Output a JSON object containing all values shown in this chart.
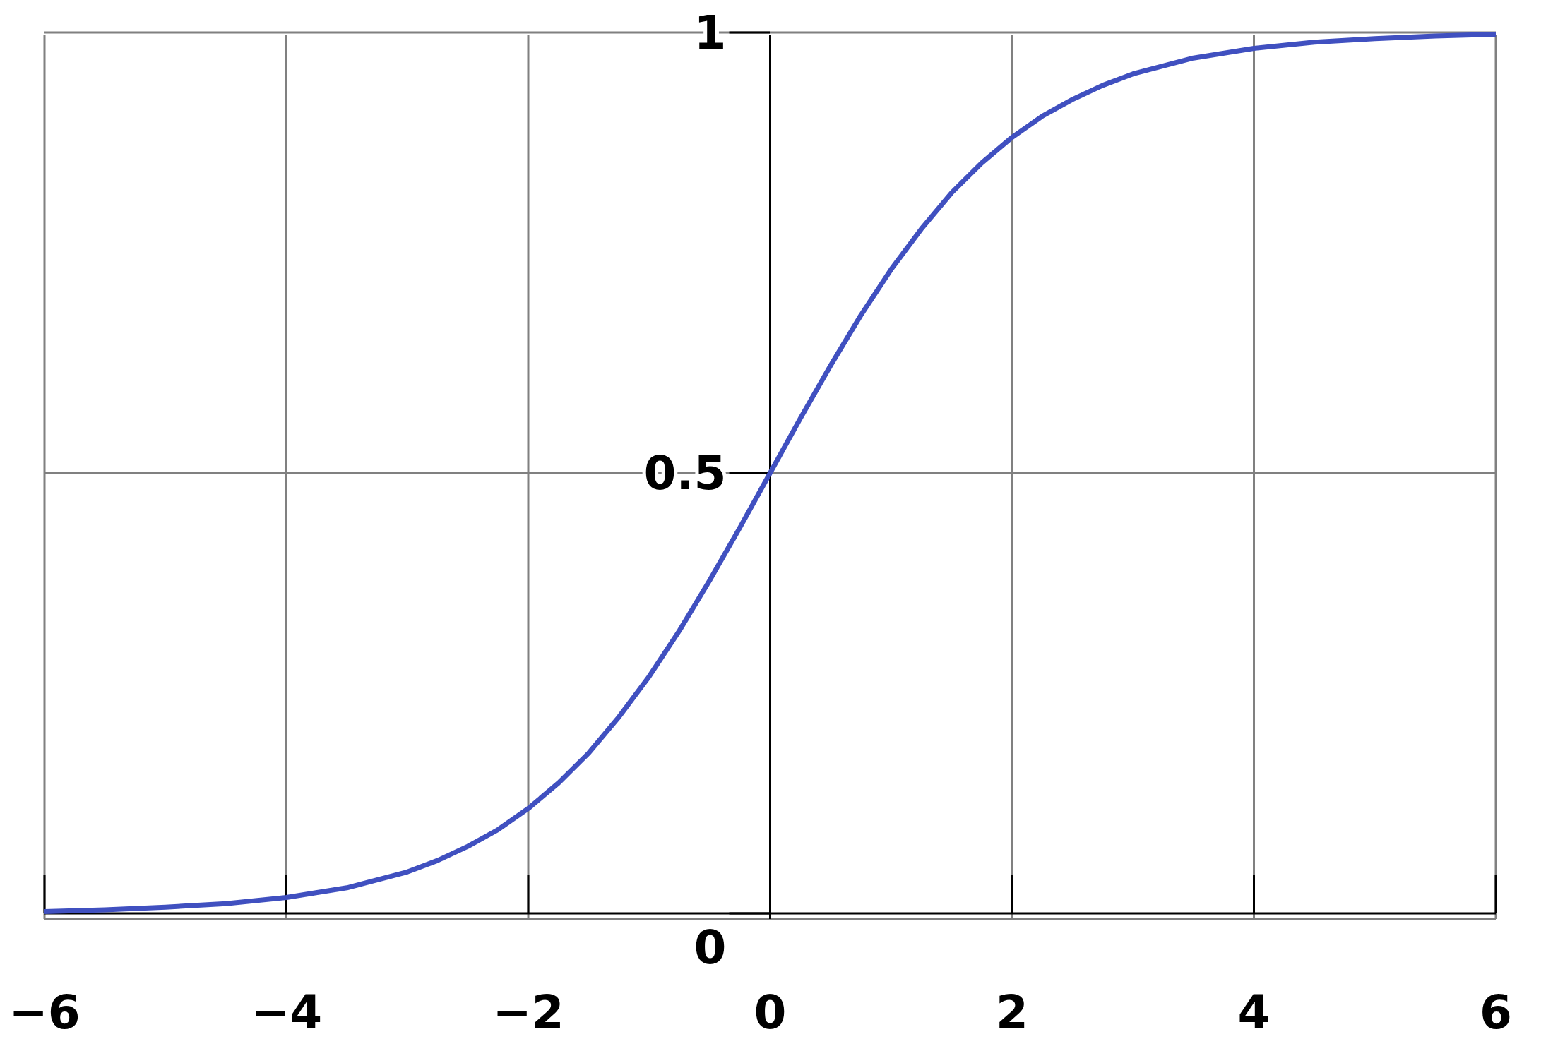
{
  "chart_data": {
    "type": "line",
    "x": [
      -6,
      -5.5,
      -5,
      -4.5,
      -4,
      -3.5,
      -3,
      -2.75,
      -2.5,
      -2.25,
      -2,
      -1.75,
      -1.5,
      -1.25,
      -1,
      -0.75,
      -0.5,
      -0.25,
      0,
      0.25,
      0.5,
      0.75,
      1,
      1.25,
      1.5,
      1.75,
      2,
      2.25,
      2.5,
      2.75,
      3,
      3.5,
      4,
      4.5,
      5,
      5.5,
      6
    ],
    "series": [
      {
        "color": "#4050c0",
        "values": [
          0.002,
          0.004,
          0.007,
          0.011,
          0.018,
          0.029,
          0.047,
          0.06,
          0.076,
          0.095,
          0.119,
          0.148,
          0.182,
          0.223,
          0.269,
          0.321,
          0.378,
          0.438,
          0.5,
          0.562,
          0.622,
          0.679,
          0.731,
          0.777,
          0.818,
          0.852,
          0.881,
          0.905,
          0.924,
          0.94,
          0.953,
          0.971,
          0.982,
          0.989,
          0.993,
          0.996,
          0.998
        ]
      }
    ],
    "xlim": [
      -6,
      6
    ],
    "ylim": [
      0,
      1
    ],
    "xticks": [
      {
        "value": -6,
        "label": "−6"
      },
      {
        "value": -4,
        "label": "−4"
      },
      {
        "value": -2,
        "label": "−2"
      },
      0,
      2,
      4,
      6
    ],
    "yticks": [
      0,
      0.5,
      1
    ],
    "grid": true,
    "marker": "none",
    "line_style": "solid"
  }
}
